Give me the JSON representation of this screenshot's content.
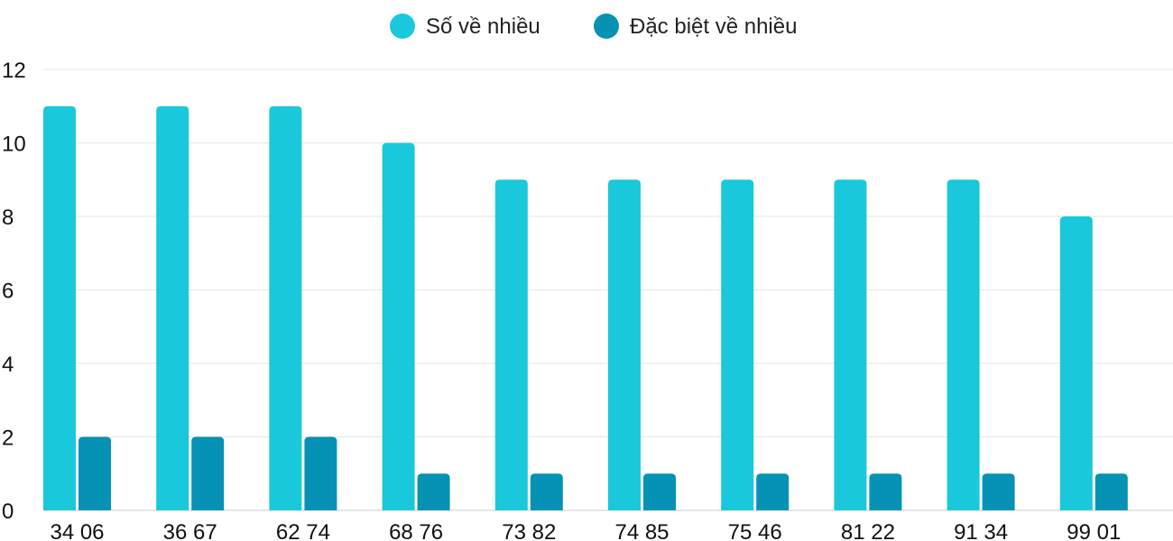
{
  "chart_data": {
    "type": "bar",
    "categories": [
      "34 06",
      "36 67",
      "62 74",
      "68 76",
      "73 82",
      "74 85",
      "75 46",
      "81 22",
      "91 34",
      "99 01"
    ],
    "series": [
      {
        "name": "Số về nhiều",
        "color": "#1ac8db",
        "values": [
          11,
          11,
          11,
          10,
          9,
          9,
          9,
          9,
          9,
          8
        ]
      },
      {
        "name": "Đặc biệt về nhiều",
        "color": "#0592b5",
        "values": [
          2,
          2,
          2,
          1,
          1,
          1,
          1,
          1,
          1,
          1
        ]
      }
    ],
    "ylim": [
      0,
      12
    ],
    "yticks": [
      "0",
      "2",
      "4",
      "6",
      "8",
      "10",
      "12"
    ],
    "grid": true,
    "legend_position": "top-center"
  }
}
